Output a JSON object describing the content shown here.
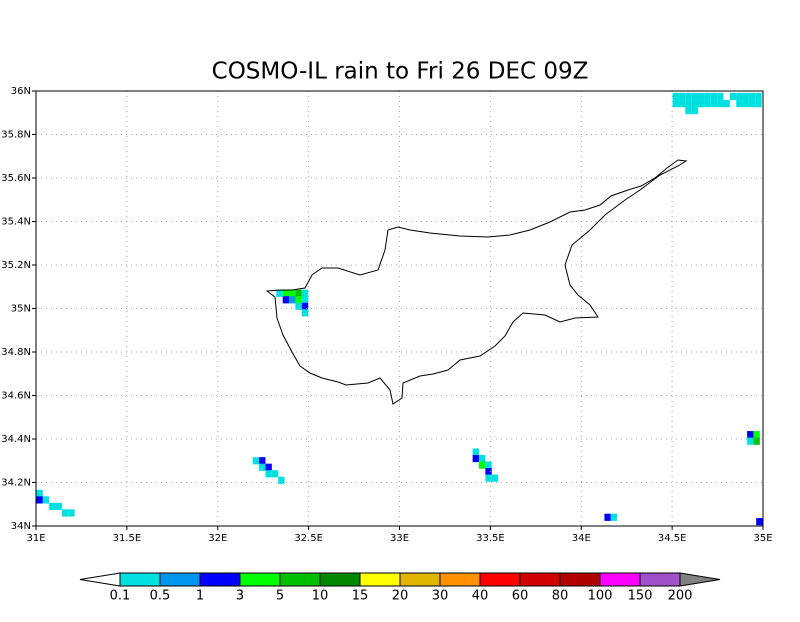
{
  "chart_data": {
    "type": "map",
    "title": "COSMO-IL rain to Fri 26 DEC 09Z",
    "xlim": [
      31,
      35
    ],
    "ylim": [
      34,
      36
    ],
    "xticks": [
      {
        "value": 31,
        "label": "31E"
      },
      {
        "value": 31.5,
        "label": "31.5E"
      },
      {
        "value": 32,
        "label": "32E"
      },
      {
        "value": 32.5,
        "label": "32.5E"
      },
      {
        "value": 33,
        "label": "33E"
      },
      {
        "value": 33.5,
        "label": "33.5E"
      },
      {
        "value": 34,
        "label": "34E"
      },
      {
        "value": 34.5,
        "label": "34.5E"
      },
      {
        "value": 35,
        "label": "35E"
      }
    ],
    "yticks": [
      {
        "value": 34,
        "label": "34N"
      },
      {
        "value": 34.2,
        "label": "34.2N"
      },
      {
        "value": 34.4,
        "label": "34.4N"
      },
      {
        "value": 34.6,
        "label": "34.6N"
      },
      {
        "value": 34.8,
        "label": "34.8N"
      },
      {
        "value": 35,
        "label": "35N"
      },
      {
        "value": 35.2,
        "label": "35.2N"
      },
      {
        "value": 35.4,
        "label": "35.4N"
      },
      {
        "value": 35.6,
        "label": "35.6N"
      },
      {
        "value": 35.8,
        "label": "35.8N"
      },
      {
        "value": 36,
        "label": "36N"
      }
    ],
    "grid": true,
    "levels": [
      0.1,
      0.5,
      1,
      3,
      5,
      10,
      15,
      20,
      30,
      40,
      60,
      80,
      100,
      150,
      200
    ],
    "colors": [
      "#ffffff",
      "#00e0e0",
      "#0096f0",
      "#0000ff",
      "#00ff00",
      "#00c000",
      "#008800",
      "#ffff00",
      "#e0b400",
      "#ff9000",
      "#ff0000",
      "#d20000",
      "#b00000",
      "#ff00ff",
      "#a050c8",
      "#808080"
    ],
    "cells": [
      [
        34.52,
        35.975,
        0.3
      ],
      [
        34.555,
        35.975,
        0.3
      ],
      [
        34.59,
        35.975,
        0.3
      ],
      [
        34.625,
        35.975,
        0.3
      ],
      [
        34.66,
        35.975,
        0.3
      ],
      [
        34.695,
        35.975,
        0.3
      ],
      [
        34.73,
        35.975,
        0.3
      ],
      [
        34.765,
        35.975,
        0.3
      ],
      [
        34.835,
        35.975,
        0.3
      ],
      [
        34.87,
        35.975,
        0.3
      ],
      [
        34.905,
        35.975,
        0.3
      ],
      [
        34.94,
        35.975,
        0.3
      ],
      [
        34.975,
        35.975,
        0.3
      ],
      [
        34.52,
        35.942,
        0.3
      ],
      [
        34.555,
        35.942,
        0.3
      ],
      [
        34.59,
        35.942,
        0.3
      ],
      [
        34.625,
        35.942,
        0.3
      ],
      [
        34.66,
        35.942,
        0.3
      ],
      [
        34.695,
        35.942,
        0.3
      ],
      [
        34.73,
        35.942,
        0.3
      ],
      [
        34.765,
        35.942,
        0.3
      ],
      [
        34.8,
        35.942,
        0.3
      ],
      [
        34.87,
        35.942,
        0.3
      ],
      [
        34.905,
        35.942,
        0.3
      ],
      [
        34.94,
        35.942,
        0.3
      ],
      [
        34.975,
        35.942,
        0.3
      ],
      [
        34.59,
        35.91,
        0.3
      ],
      [
        34.625,
        35.91,
        0.3
      ],
      [
        32.34,
        35.07,
        0.3
      ],
      [
        32.375,
        35.07,
        4
      ],
      [
        32.41,
        35.07,
        4
      ],
      [
        32.445,
        35.07,
        8
      ],
      [
        32.48,
        35.07,
        0.3
      ],
      [
        32.375,
        35.04,
        2
      ],
      [
        32.41,
        35.04,
        0.7
      ],
      [
        32.445,
        35.04,
        4
      ],
      [
        32.48,
        35.04,
        0.3
      ],
      [
        32.445,
        35.01,
        0.3
      ],
      [
        32.48,
        35.01,
        2
      ],
      [
        32.48,
        34.98,
        0.3
      ],
      [
        32.21,
        34.3,
        0.3
      ],
      [
        32.245,
        34.3,
        2
      ],
      [
        32.245,
        34.27,
        0.3
      ],
      [
        32.28,
        34.27,
        2
      ],
      [
        32.28,
        34.24,
        0.3
      ],
      [
        32.315,
        34.24,
        0.3
      ],
      [
        32.35,
        34.21,
        0.3
      ],
      [
        33.42,
        34.34,
        0.3
      ],
      [
        33.42,
        34.31,
        2
      ],
      [
        33.455,
        34.31,
        0.3
      ],
      [
        33.455,
        34.28,
        4
      ],
      [
        33.49,
        34.28,
        0.3
      ],
      [
        33.49,
        34.25,
        2
      ],
      [
        33.49,
        34.22,
        0.3
      ],
      [
        33.525,
        34.22,
        0.3
      ],
      [
        31.02,
        34.15,
        0.3
      ],
      [
        31.02,
        34.12,
        2
      ],
      [
        31.055,
        34.12,
        0.3
      ],
      [
        31.09,
        34.09,
        0.3
      ],
      [
        31.125,
        34.09,
        0.3
      ],
      [
        31.16,
        34.06,
        0.3
      ],
      [
        31.195,
        34.06,
        0.3
      ],
      [
        34.145,
        34.04,
        2
      ],
      [
        34.18,
        34.04,
        0.3
      ],
      [
        34.93,
        34.42,
        2
      ],
      [
        34.965,
        34.42,
        4
      ],
      [
        34.965,
        34.39,
        8
      ],
      [
        34.93,
        34.39,
        0.3
      ],
      [
        34.98,
        34.02,
        2
      ]
    ]
  }
}
